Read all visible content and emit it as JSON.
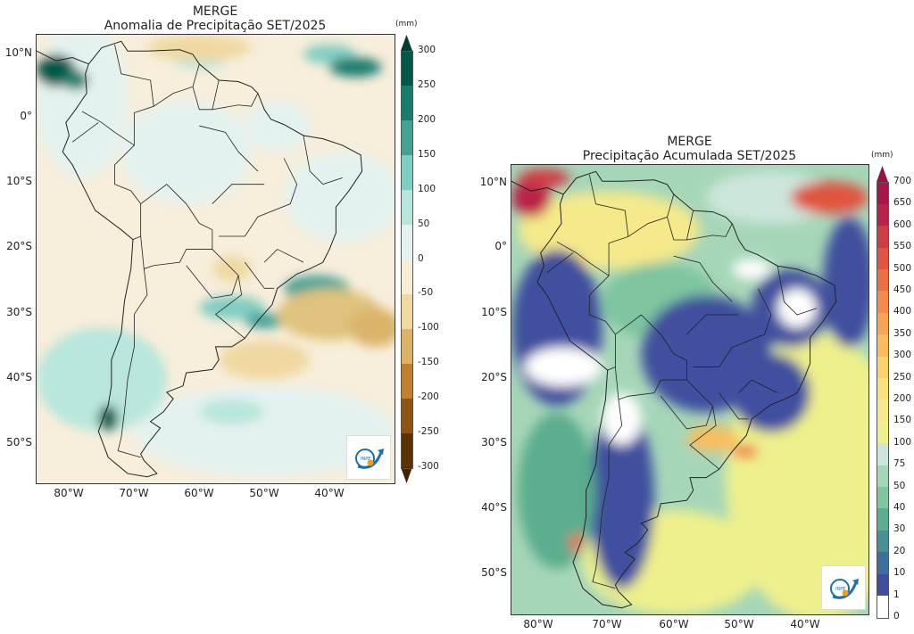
{
  "left_panel": {
    "title_line1": "MERGE",
    "title_line2": "Anomalia de Precipitação SET/2025",
    "units": "(mm)",
    "lat_ticks": [
      "10°N",
      "0°",
      "10°S",
      "20°S",
      "30°S",
      "40°S",
      "50°S"
    ],
    "lon_ticks": [
      "80°W",
      "70°W",
      "60°W",
      "50°W",
      "40°W"
    ],
    "colorbar": {
      "ticks": [
        "300",
        "250",
        "200",
        "150",
        "100",
        "50",
        "0",
        "-50",
        "-100",
        "-150",
        "-200",
        "-250",
        "-300"
      ],
      "colors_bottom_to_top": [
        "#5a3206",
        "#8c5612",
        "#c0812e",
        "#dbb46a",
        "#f0d8a0",
        "#f7ecd6",
        "#e4f2ef",
        "#b8e6dc",
        "#80cdc1",
        "#45a195",
        "#1b7b6e",
        "#01594c"
      ],
      "extend_top_color": "#003c30",
      "extend_bottom_color": "#3f2305"
    },
    "logo_text": "INPE"
  },
  "right_panel": {
    "title_line1": "MERGE",
    "title_line2": "Precipitação Acumulada SET/2025",
    "units": "(mm)",
    "lat_ticks": [
      "10°N",
      "0°",
      "10°S",
      "20°S",
      "30°S",
      "40°S",
      "50°S"
    ],
    "lon_ticks": [
      "80°W",
      "70°W",
      "60°W",
      "50°W",
      "40°W"
    ],
    "colorbar": {
      "ticks": [
        "700",
        "650",
        "600",
        "550",
        "500",
        "450",
        "400",
        "350",
        "300",
        "250",
        "200",
        "150",
        "100",
        "75",
        "50",
        "40",
        "30",
        "20",
        "10",
        "1",
        "0"
      ],
      "colors_bottom_to_top": [
        "#ffffff",
        "#3f4f9e",
        "#3e6e9c",
        "#4a8f95",
        "#5aad8e",
        "#7ec5a0",
        "#a6d6b8",
        "#cde6dc",
        "#eef08c",
        "#f5e98a",
        "#f8e07a",
        "#f9d46c",
        "#f9bd5e",
        "#f8a254",
        "#f48a4c",
        "#ee6e44",
        "#df5541",
        "#cf3d44",
        "#b92349",
        "#a8154a"
      ],
      "extend_top_color": "#9a0f45"
    },
    "logo_text": "INPE"
  }
}
